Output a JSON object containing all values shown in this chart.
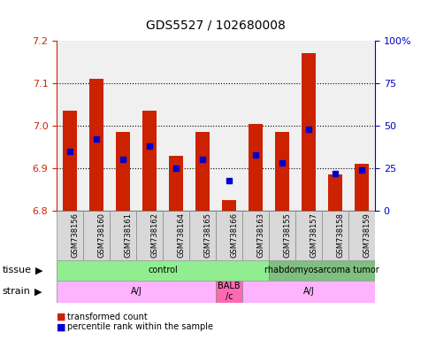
{
  "title": "GDS5527 / 102680008",
  "samples": [
    "GSM738156",
    "GSM738160",
    "GSM738161",
    "GSM738162",
    "GSM738164",
    "GSM738165",
    "GSM738166",
    "GSM738163",
    "GSM738155",
    "GSM738157",
    "GSM738158",
    "GSM738159"
  ],
  "red_values": [
    7.035,
    7.11,
    6.985,
    7.035,
    6.93,
    6.985,
    6.825,
    7.005,
    6.985,
    7.17,
    6.885,
    6.91
  ],
  "blue_percentiles": [
    35,
    42,
    30,
    38,
    25,
    30,
    18,
    33,
    28,
    48,
    22,
    24
  ],
  "y_min": 6.8,
  "y_max": 7.2,
  "y_ticks": [
    6.8,
    6.9,
    7.0,
    7.1,
    7.2
  ],
  "right_y_ticks": [
    0,
    25,
    50,
    75,
    100
  ],
  "tissue_groups": [
    {
      "label": "control",
      "start": 0,
      "end": 8,
      "color": "#90EE90"
    },
    {
      "label": "rhabdomyosarcoma tumor",
      "start": 8,
      "end": 12,
      "color": "#7FBF7F"
    }
  ],
  "strain_groups": [
    {
      "label": "A/J",
      "start": 0,
      "end": 6,
      "color": "#FFB3FF"
    },
    {
      "label": "BALB\n/c",
      "start": 6,
      "end": 7,
      "color": "#FF69B4"
    },
    {
      "label": "A/J",
      "start": 7,
      "end": 12,
      "color": "#FFB3FF"
    }
  ],
  "bg_color": "#ffffff",
  "plot_bg": "#f0f0f0",
  "red_color": "#cc2200",
  "blue_color": "#0000cc",
  "left_axis_color": "#cc2200",
  "right_axis_color": "#0000cc"
}
